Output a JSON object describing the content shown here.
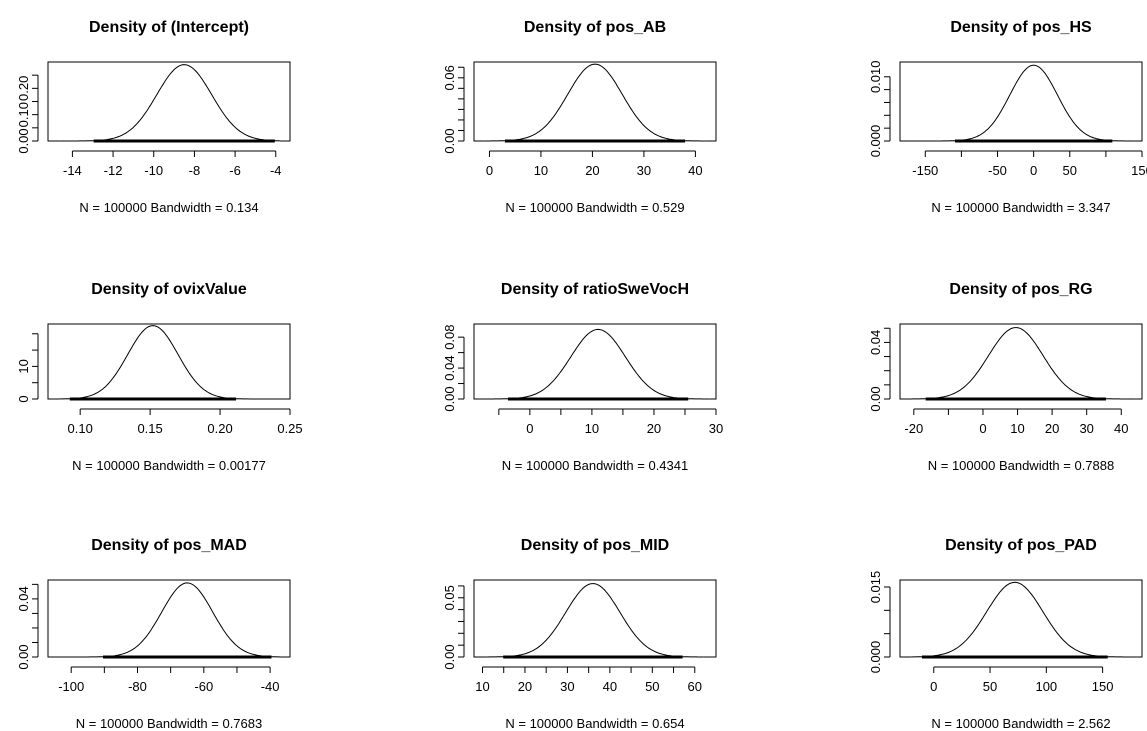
{
  "chart_data": [
    {
      "type": "line",
      "title": "Density of (Intercept)",
      "xlabel": "N = 100000   Bandwidth = 0.134",
      "n": 100000,
      "bandwidth": 0.134,
      "xlim": [
        -15.2,
        -3.3
      ],
      "ylim": [
        0,
        0.3
      ],
      "xticks": [
        -14,
        -12,
        -10,
        -8,
        -6,
        -4
      ],
      "yticks": [
        0,
        0.05,
        0.1,
        0.15,
        0.2,
        0.25
      ],
      "ytick_labels": [
        "0.00",
        "",
        "0.10",
        "",
        "0.20",
        ""
      ],
      "rug": [
        -14.6,
        -3.8
      ],
      "peak": {
        "x": -8.5,
        "density": 0.29
      },
      "sd": 1.35
    },
    {
      "type": "line",
      "title": "Density of pos_AB",
      "xlabel": "N = 100000   Bandwidth = 0.529",
      "n": 100000,
      "bandwidth": 0.529,
      "xlim": [
        -3,
        44
      ],
      "ylim": [
        0,
        0.075
      ],
      "xticks": [
        0,
        10,
        20,
        30,
        40
      ],
      "yticks": [
        0,
        0.01,
        0.02,
        0.03,
        0.04,
        0.05,
        0.06,
        0.07
      ],
      "ytick_labels": [
        "0.00",
        "",
        "",
        "",
        "",
        "",
        "0.06",
        ""
      ],
      "rug": [
        -1,
        42
      ],
      "peak": {
        "x": 20.5,
        "density": 0.073
      },
      "sd": 5.3
    },
    {
      "type": "line",
      "title": "Density of pos_HS",
      "xlabel": "N = 100000   Bandwidth = 3.347",
      "n": 100000,
      "bandwidth": 3.347,
      "xlim": [
        -185,
        150
      ],
      "ylim": [
        0,
        0.0123
      ],
      "xticks": [
        -150,
        -100,
        -50,
        0,
        50,
        100,
        150
      ],
      "xtick_labels": [
        "-150",
        "",
        "-50",
        "0",
        "50",
        "",
        "150"
      ],
      "yticks": [
        0,
        0.002,
        0.004,
        0.006,
        0.008,
        0.01
      ],
      "ytick_labels": [
        "0.000",
        "",
        "",
        "",
        "",
        "0.010"
      ],
      "rug": [
        -170,
        140
      ],
      "peak": {
        "x": 0,
        "density": 0.0118
      },
      "sd": 33
    },
    {
      "type": "line",
      "title": "Density of ovixValue",
      "xlabel": "N = 100000   Bandwidth = 0.00177",
      "n": 100000,
      "bandwidth": 0.00177,
      "xlim": [
        0.077,
        0.25
      ],
      "ylim": [
        0,
        23
      ],
      "xticks": [
        0.1,
        0.15,
        0.2,
        0.25
      ],
      "xtick_labels": [
        "0.10",
        "0.15",
        "0.20",
        "0.25"
      ],
      "yticks": [
        0,
        5,
        10,
        15,
        20
      ],
      "ytick_labels": [
        "0",
        "",
        "10",
        "",
        ""
      ],
      "rug": [
        0.085,
        0.245
      ],
      "peak": {
        "x": 0.152,
        "density": 22.5
      },
      "sd": 0.018
    },
    {
      "type": "line",
      "title": "Density of ratioSweVocH",
      "xlabel": "N = 100000   Bandwidth = 0.4341",
      "n": 100000,
      "bandwidth": 0.4341,
      "xlim": [
        -9,
        30
      ],
      "ylim": [
        0,
        0.097
      ],
      "xticks": [
        -5,
        0,
        5,
        10,
        15,
        20,
        25,
        30
      ],
      "xtick_labels": [
        "",
        "0",
        "",
        "10",
        "",
        "20",
        "",
        "30"
      ],
      "yticks": [
        0,
        0.02,
        0.04,
        0.06,
        0.08
      ],
      "ytick_labels": [
        "0.00",
        "",
        "0.04",
        "",
        "0.08"
      ],
      "rug": [
        -7,
        29
      ],
      "peak": {
        "x": 11,
        "density": 0.09
      },
      "sd": 4.4
    },
    {
      "type": "line",
      "title": "Density of pos_RG",
      "xlabel": "N = 100000   Bandwidth = 0.7888",
      "n": 100000,
      "bandwidth": 0.7888,
      "xlim": [
        -24,
        46
      ],
      "ylim": [
        0,
        0.053
      ],
      "xticks": [
        -20,
        -10,
        0,
        10,
        20,
        30,
        40
      ],
      "xtick_labels": [
        "-20",
        "",
        "0",
        "10",
        "20",
        "30",
        "40"
      ],
      "yticks": [
        0,
        0.01,
        0.02,
        0.03,
        0.04,
        0.05
      ],
      "ytick_labels": [
        "0.00",
        "",
        "",
        "",
        "0.04",
        ""
      ],
      "rug": [
        -22,
        44
      ],
      "peak": {
        "x": 9.5,
        "density": 0.0505
      },
      "sd": 7.9
    },
    {
      "type": "line",
      "title": "Density of pos_MAD",
      "xlabel": "N = 100000   Bandwidth = 0.7683",
      "n": 100000,
      "bandwidth": 0.7683,
      "xlim": [
        -107,
        -34
      ],
      "ylim": [
        0,
        0.053
      ],
      "xticks": [
        -100,
        -90,
        -80,
        -70,
        -60,
        -50,
        -40
      ],
      "xtick_labels": [
        "-100",
        "",
        "-80",
        "",
        "-60",
        "",
        "-40"
      ],
      "yticks": [
        0,
        0.01,
        0.02,
        0.03,
        0.04,
        0.05
      ],
      "ytick_labels": [
        "0.00",
        "",
        "",
        "",
        "0.04",
        ""
      ],
      "rug": [
        -104,
        -37
      ],
      "peak": {
        "x": -65,
        "density": 0.051
      },
      "sd": 7.7
    },
    {
      "type": "line",
      "title": "Density of pos_MID",
      "xlabel": "N = 100000   Bandwidth = 0.654",
      "n": 100000,
      "bandwidth": 0.654,
      "xlim": [
        8,
        65
      ],
      "ylim": [
        0,
        0.065
      ],
      "xticks": [
        10,
        15,
        20,
        25,
        30,
        35,
        40,
        45,
        50,
        55,
        60
      ],
      "xtick_labels": [
        "10",
        "",
        "20",
        "",
        "30",
        "",
        "40",
        "",
        "50",
        "",
        "60"
      ],
      "yticks": [
        0,
        0.01,
        0.02,
        0.03,
        0.04,
        0.05,
        0.06
      ],
      "ytick_labels": [
        "0.00",
        "",
        "",
        "",
        "",
        "0.05",
        ""
      ],
      "rug": [
        11,
        62
      ],
      "peak": {
        "x": 36,
        "density": 0.062
      },
      "sd": 6.4
    },
    {
      "type": "line",
      "title": "Density of pos_PAD",
      "xlabel": "N = 100000   Bandwidth = 2.562",
      "n": 100000,
      "bandwidth": 2.562,
      "xlim": [
        -30,
        185
      ],
      "ylim": [
        0,
        0.0165
      ],
      "xticks": [
        0,
        50,
        100,
        150
      ],
      "yticks": [
        0,
        0.005,
        0.01,
        0.015
      ],
      "ytick_labels": [
        "0.000",
        "",
        "",
        "0.015"
      ],
      "rug": [
        -20,
        180
      ],
      "peak": {
        "x": 72,
        "density": 0.016
      },
      "sd": 25
    }
  ]
}
